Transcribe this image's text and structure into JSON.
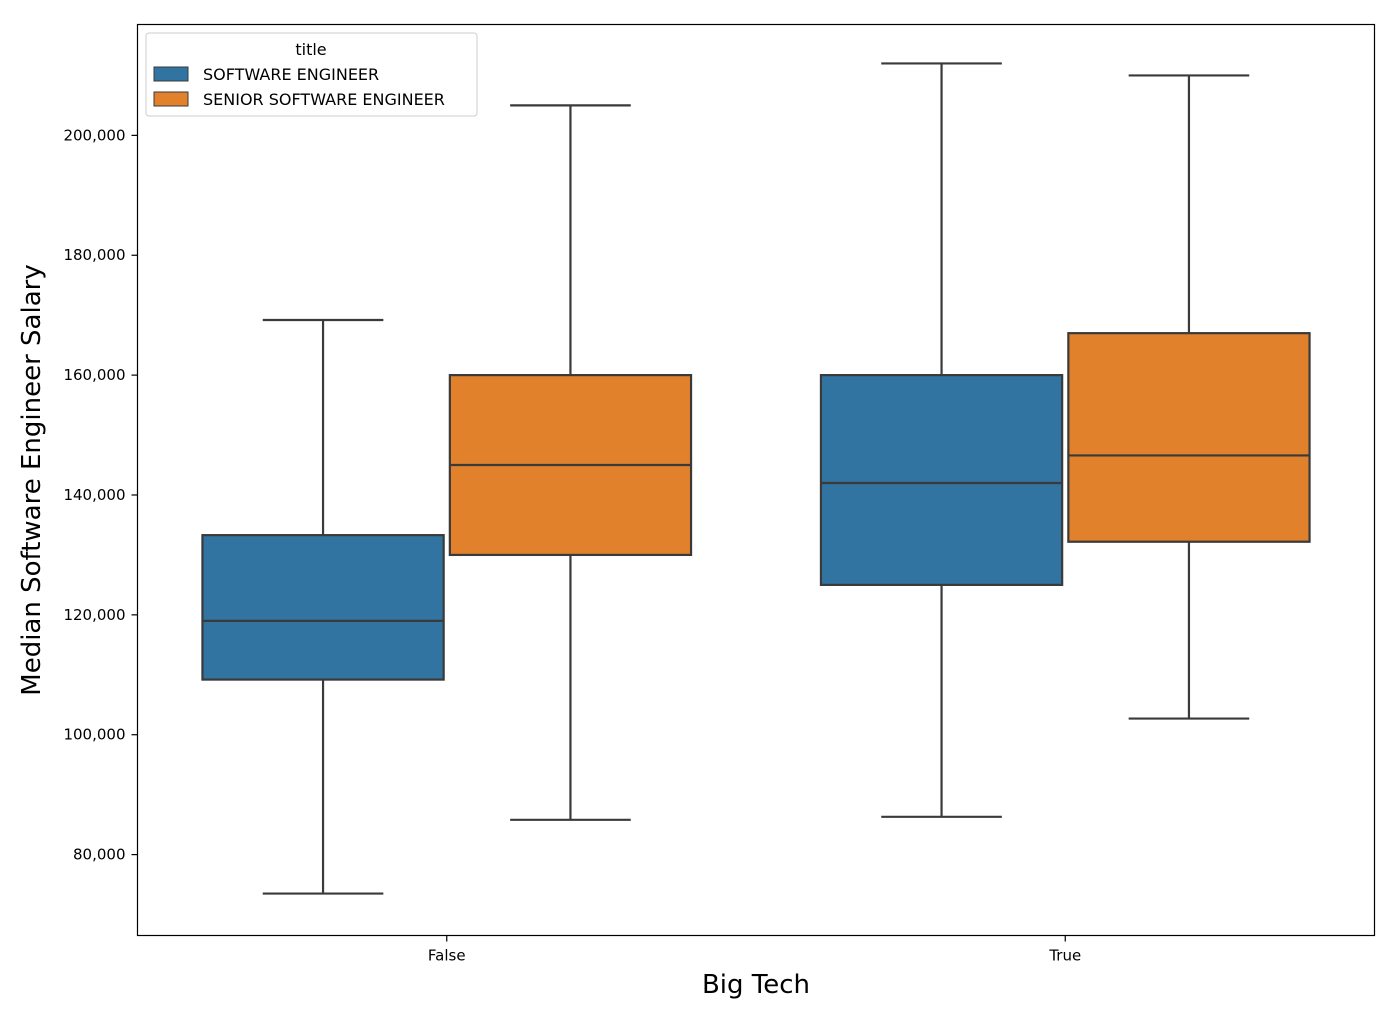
{
  "chart_data": {
    "type": "box",
    "xlabel": "Big Tech",
    "ylabel": "Median Software Engineer Salary",
    "categories": [
      "False",
      "True"
    ],
    "ylim": [
      66500,
      218500
    ],
    "yticks": [
      80000,
      100000,
      120000,
      140000,
      160000,
      180000,
      200000
    ],
    "ytick_labels": [
      "80,000",
      "100,000",
      "120,000",
      "140,000",
      "160,000",
      "180,000",
      "200,000"
    ],
    "grid": false,
    "legend": {
      "title": "title",
      "placement": "top-left",
      "entries": [
        "SOFTWARE ENGINEER",
        "SENIOR SOFTWARE ENGINEER"
      ]
    },
    "series": [
      {
        "name": "SOFTWARE ENGINEER",
        "color": "#3274a1",
        "boxes": [
          {
            "category": "False",
            "whisker_low": 73500,
            "q1": 109200,
            "median": 119000,
            "q3": 133300,
            "whisker_high": 169200
          },
          {
            "category": "True",
            "whisker_low": 86300,
            "q1": 125000,
            "median": 142000,
            "q3": 160000,
            "whisker_high": 212000
          }
        ]
      },
      {
        "name": "SENIOR SOFTWARE ENGINEER",
        "color": "#e1812c",
        "boxes": [
          {
            "category": "False",
            "whisker_low": 85800,
            "q1": 130000,
            "median": 145000,
            "q3": 160000,
            "whisker_high": 205000
          },
          {
            "category": "True",
            "whisker_low": 102700,
            "q1": 132200,
            "median": 146600,
            "q3": 167000,
            "whisker_high": 210000
          }
        ]
      }
    ]
  }
}
